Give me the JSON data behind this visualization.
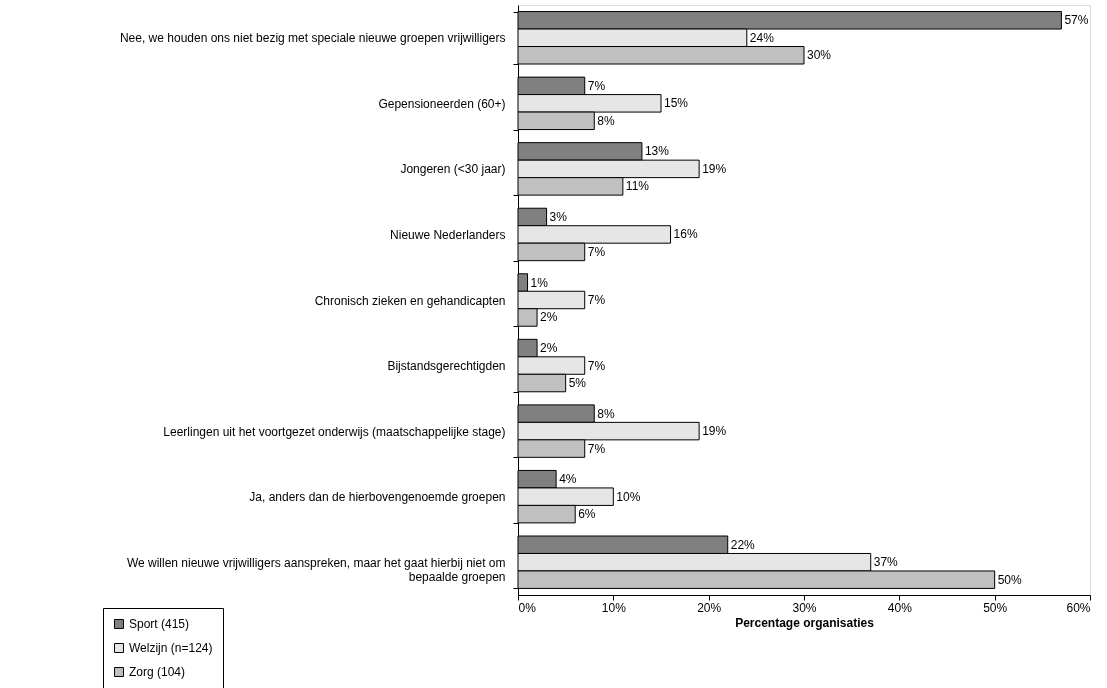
{
  "chart_data": {
    "type": "bar",
    "orientation": "horizontal",
    "xlabel": "Percentage organisaties",
    "categories": [
      "Nee, we houden ons niet bezig met speciale nieuwe groepen vrijwilligers",
      "Gepensioneerden (60+)",
      "Jongeren (<30 jaar)",
      "Nieuwe Nederlanders",
      "Chronisch zieken en gehandicapten",
      "Bijstandsgerechtigden",
      "Leerlingen uit het voortgezet onderwijs (maatschappelijke stage)",
      "Ja, anders dan de hierbovengenoemde groepen",
      "We willen nieuwe vrijwilligers aanspreken, maar het gaat hierbij niet om\nbepaalde groepen"
    ],
    "series": [
      {
        "name": "Sport (415)",
        "color": "#808080",
        "values": [
          57,
          7,
          13,
          3,
          1,
          2,
          8,
          4,
          22
        ],
        "value_labels": [
          "57%",
          "7%",
          "13%",
          "3%",
          "1%",
          "2%",
          "8%",
          "4%",
          "22%"
        ]
      },
      {
        "name": "Welzijn (n=124)",
        "color": "#e6e6e6",
        "values": [
          24,
          15,
          19,
          16,
          7,
          7,
          19,
          10,
          37
        ],
        "value_labels": [
          "24%",
          "15%",
          "19%",
          "16%",
          "7%",
          "7%",
          "19%",
          "10%",
          "37%"
        ]
      },
      {
        "name": "Zorg (104)",
        "color": "#c0c0c0",
        "values": [
          30,
          8,
          11,
          7,
          2,
          5,
          7,
          6,
          50
        ],
        "value_labels": [
          "30%",
          "8%",
          "11%",
          "7%",
          "2%",
          "5%",
          "7%",
          "6%",
          "50%"
        ]
      }
    ],
    "xlim": [
      0,
      60
    ],
    "xticks": [
      {
        "value": 0,
        "label": "0%"
      },
      {
        "value": 10,
        "label": "10%"
      },
      {
        "value": 20,
        "label": "20%"
      },
      {
        "value": 30,
        "label": "30%"
      },
      {
        "value": 40,
        "label": "40%"
      },
      {
        "value": 50,
        "label": "50%"
      },
      {
        "value": 60,
        "label": "60%"
      }
    ],
    "grid": false,
    "legend": "bottom left"
  }
}
